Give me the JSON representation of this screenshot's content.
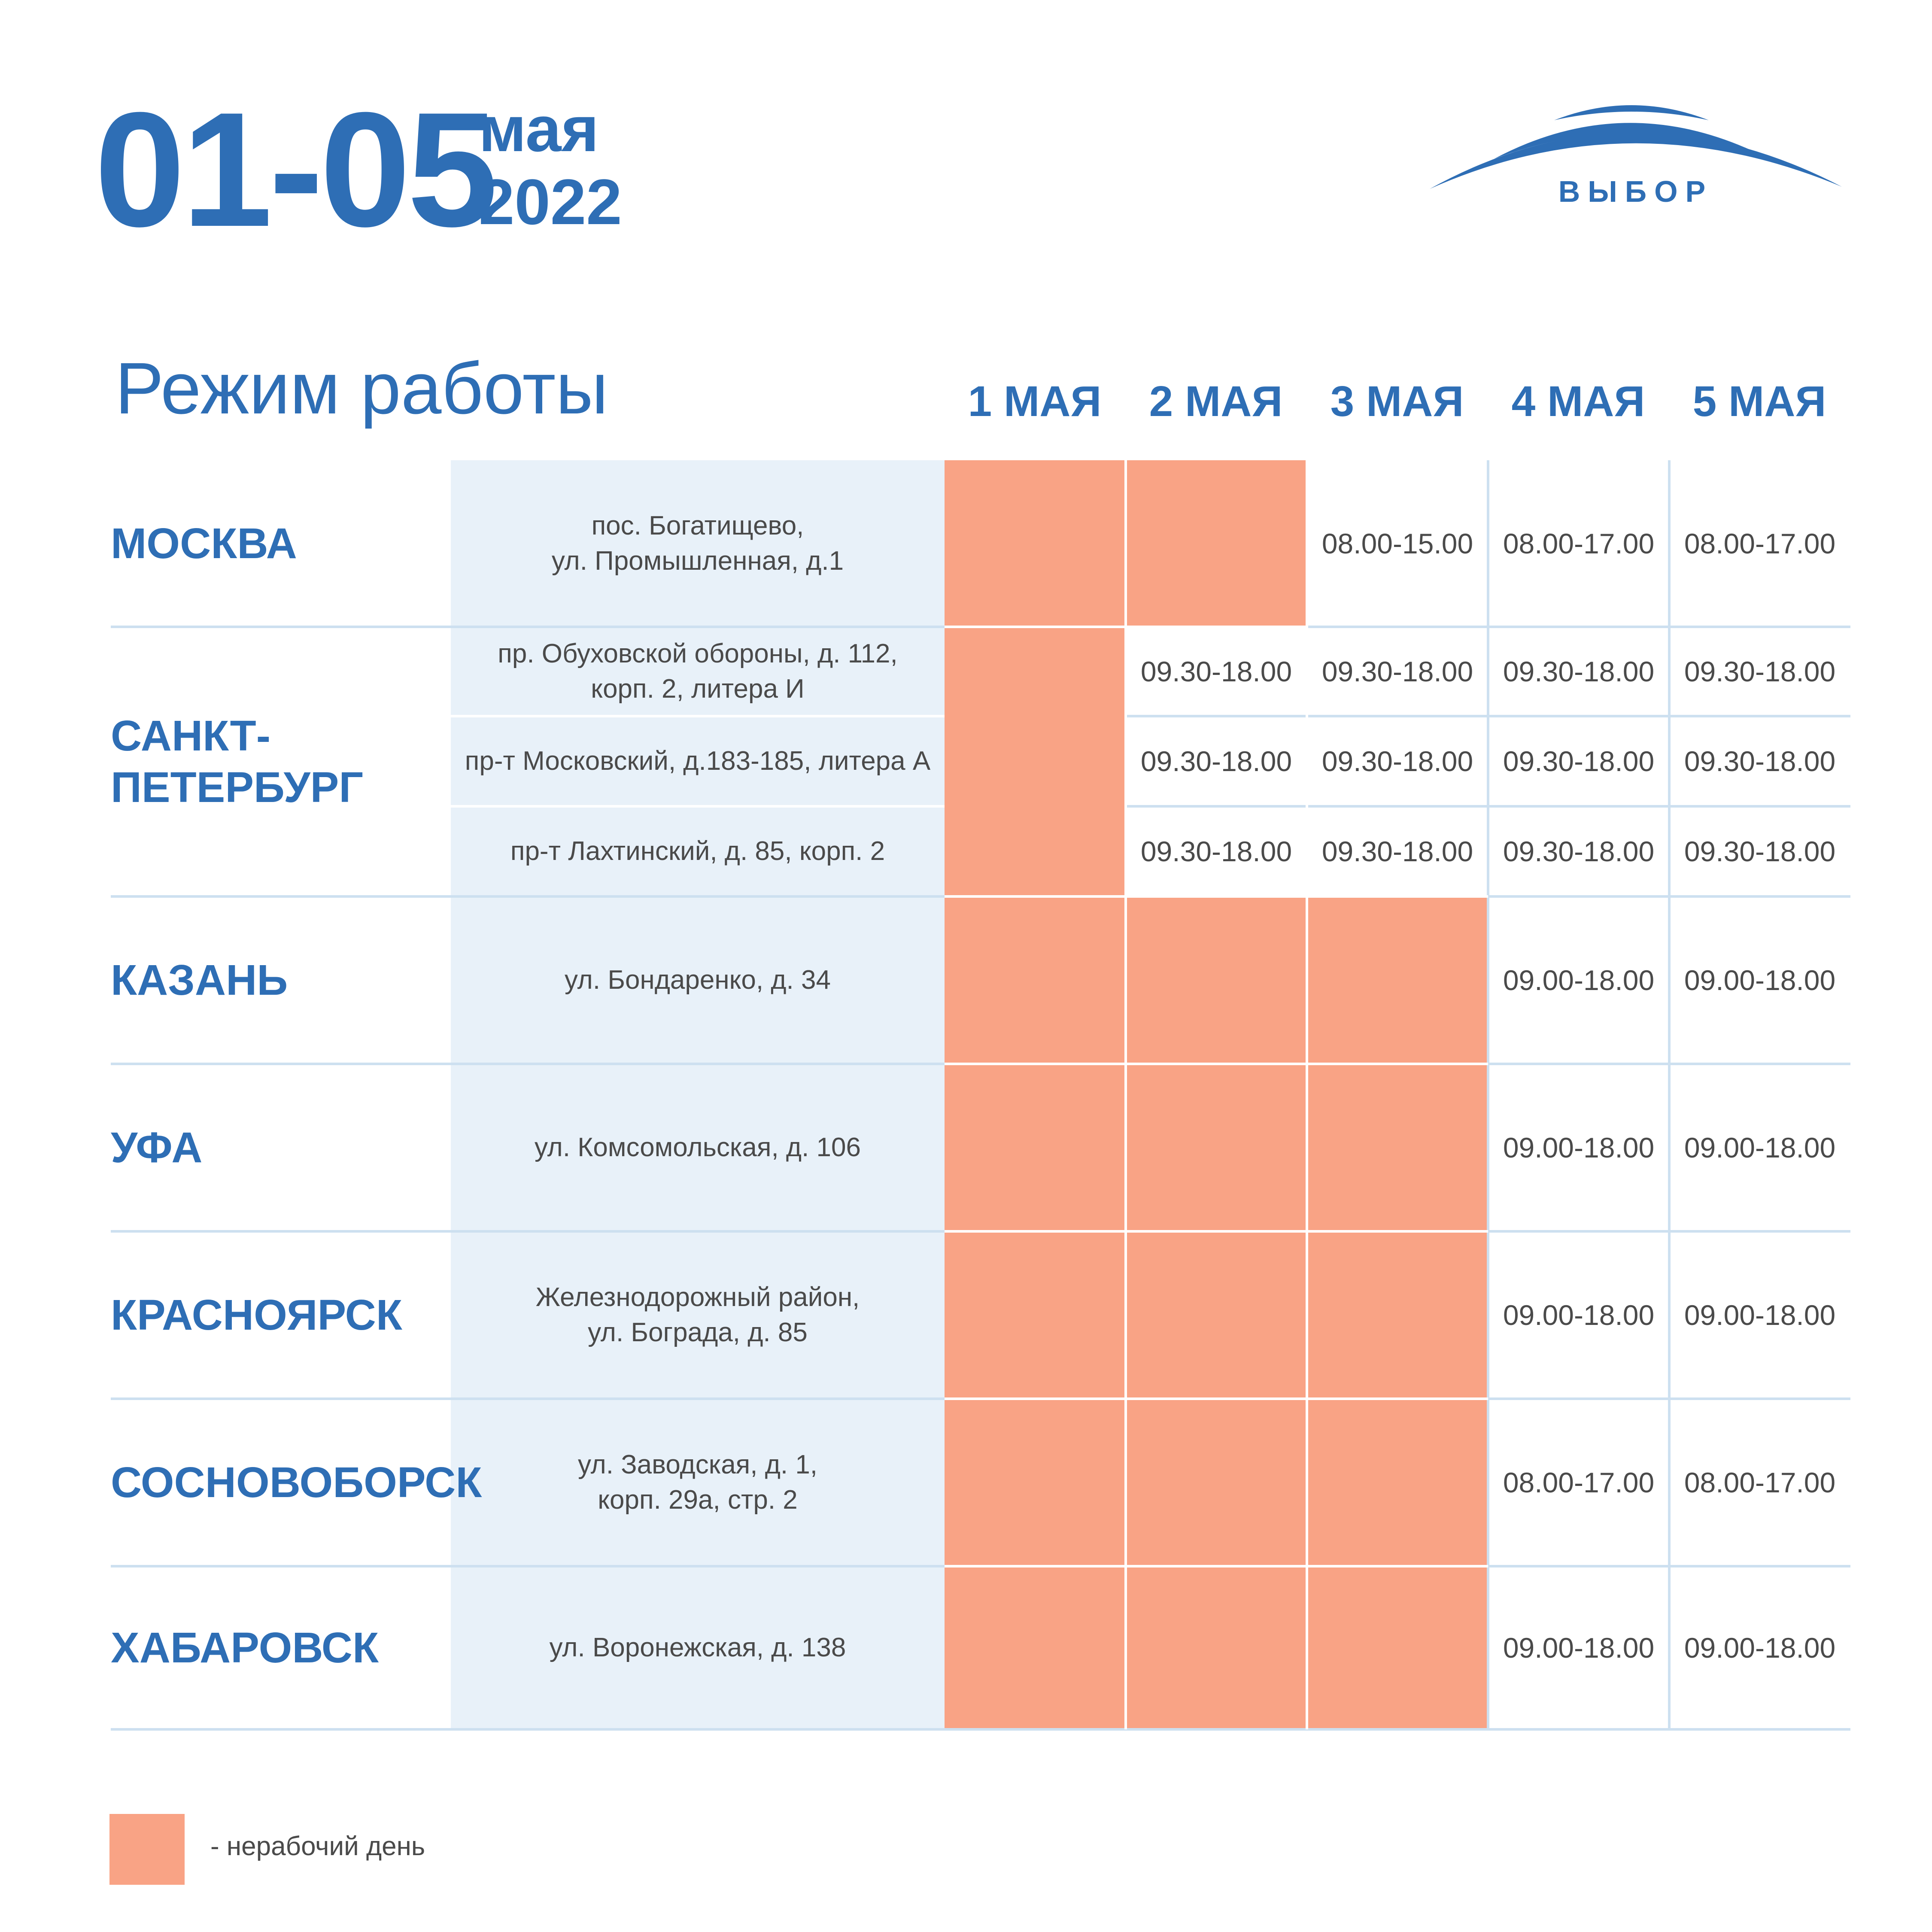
{
  "header": {
    "date_range": "01-05",
    "month": "мая",
    "year": "2022"
  },
  "logo": {
    "text": "ВЫБОР",
    "icon": "arc-logo-icon",
    "color": "#2e6eb5"
  },
  "title": "Режим работы",
  "days": [
    "1 МАЯ",
    "2 МАЯ",
    "3 МАЯ",
    "4 МАЯ",
    "5 МАЯ"
  ],
  "rows": [
    {
      "city": "МОСКВА",
      "address": "пос. Богатищево,\nул. Промышленная, д.1",
      "hours": [
        "",
        "",
        "08.00-15.00",
        "08.00-17.00",
        "08.00-17.00"
      ]
    },
    {
      "city": "САНКТ-\nПЕТЕРБУРГ",
      "address": "пр. Обуховской обороны, д. 112,\nкорп. 2, литера И",
      "hours": [
        "",
        "09.30-18.00",
        "09.30-18.00",
        "09.30-18.00",
        "09.30-18.00"
      ]
    },
    {
      "city": "",
      "address": "пр-т Московский, д.183-185, литера А",
      "hours": [
        "",
        "09.30-18.00",
        "09.30-18.00",
        "09.30-18.00",
        "09.30-18.00"
      ]
    },
    {
      "city": "",
      "address": "пр-т Лахтинский, д. 85, корп. 2",
      "hours": [
        "",
        "09.30-18.00",
        "09.30-18.00",
        "09.30-18.00",
        "09.30-18.00"
      ]
    },
    {
      "city": "КАЗАНЬ",
      "address": "ул. Бондаренко,  д. 34",
      "hours": [
        "",
        "",
        "",
        "09.00-18.00",
        "09.00-18.00"
      ]
    },
    {
      "city": "УФА",
      "address": "ул. Комсомольская,  д. 106",
      "hours": [
        "",
        "",
        "",
        "09.00-18.00",
        "09.00-18.00"
      ]
    },
    {
      "city": "КРАСНОЯРСК",
      "address": "Железнодорожный район,\nул. Бограда, д. 85",
      "hours": [
        "",
        "",
        "",
        "09.00-18.00",
        "09.00-18.00"
      ]
    },
    {
      "city": "СОСНОВОБОРСК",
      "address": "ул. Заводская, д. 1,\nкорп. 29а, стр. 2",
      "hours": [
        "",
        "",
        "",
        "08.00-17.00",
        "08.00-17.00"
      ]
    },
    {
      "city": "ХАБАРОВСК",
      "address": "ул. Воронежская, д. 138",
      "hours": [
        "",
        "",
        "",
        "09.00-18.00",
        "09.00-18.00"
      ]
    }
  ],
  "legend": {
    "label": "- нерабочий день",
    "color": "#f9a385"
  },
  "colors": {
    "accent": "#2e6eb5",
    "off_day": "#f9a385",
    "address_bg": "#e8f1f9"
  }
}
